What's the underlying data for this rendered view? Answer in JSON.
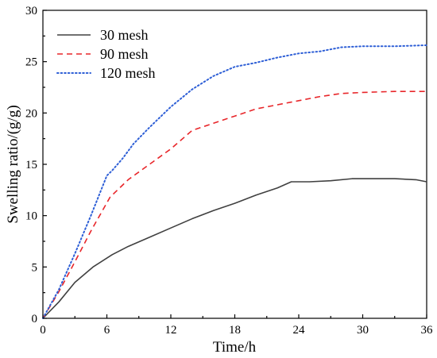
{
  "chart_data": {
    "type": "line",
    "title": "",
    "xlabel": "Time/h",
    "ylabel": "Swelling ratio/(g/g)",
    "xlim": [
      0,
      36
    ],
    "ylim": [
      0,
      30
    ],
    "xticks": [
      0,
      6,
      12,
      18,
      24,
      30,
      36
    ],
    "yticks": [
      0,
      5,
      10,
      15,
      20,
      25,
      30
    ],
    "xtick_labels": [
      "0",
      "6",
      "12",
      "18",
      "24",
      "30",
      "36"
    ],
    "ytick_labels": [
      "0",
      "5",
      "10",
      "15",
      "20",
      "25",
      "30"
    ],
    "grid": false,
    "legend_position": "top-left",
    "series": [
      {
        "name": "30 mesh",
        "color": "#404040",
        "dash": "solid",
        "x": [
          0,
          1.5,
          3,
          4.7,
          6.5,
          8,
          10,
          12,
          14,
          16,
          18,
          20,
          22,
          23.3,
          25,
          27,
          29,
          30,
          33,
          35,
          36
        ],
        "y": [
          0,
          1.6,
          3.5,
          5.0,
          6.2,
          7.0,
          7.9,
          8.8,
          9.7,
          10.5,
          11.2,
          12.0,
          12.7,
          13.3,
          13.3,
          13.4,
          13.6,
          13.6,
          13.6,
          13.5,
          13.3
        ]
      },
      {
        "name": "90 mesh",
        "color": "#e8262a",
        "dash": "dashed",
        "x": [
          0,
          1.5,
          3,
          4.5,
          6.3,
          8,
          10,
          12,
          14,
          16,
          18,
          20,
          22,
          24,
          26,
          28,
          30,
          33,
          36
        ],
        "y": [
          0,
          2.6,
          5.5,
          8.5,
          11.8,
          13.5,
          15.0,
          16.5,
          18.3,
          19.0,
          19.7,
          20.4,
          20.8,
          21.2,
          21.6,
          21.9,
          22.0,
          22.1,
          22.1
        ]
      },
      {
        "name": "120 mesh",
        "color": "#2e5fd6",
        "dash": "dotted",
        "x": [
          0,
          1.5,
          3,
          4.5,
          6,
          6.5,
          7.5,
          8.5,
          10,
          12,
          14,
          16,
          18,
          20,
          22,
          24,
          26,
          28,
          30,
          33,
          36
        ],
        "y": [
          0,
          2.8,
          6.3,
          10.0,
          13.9,
          14.4,
          15.6,
          17.0,
          18.6,
          20.6,
          22.3,
          23.6,
          24.5,
          24.9,
          25.4,
          25.8,
          26.0,
          26.4,
          26.5,
          26.5,
          26.6
        ]
      }
    ]
  }
}
